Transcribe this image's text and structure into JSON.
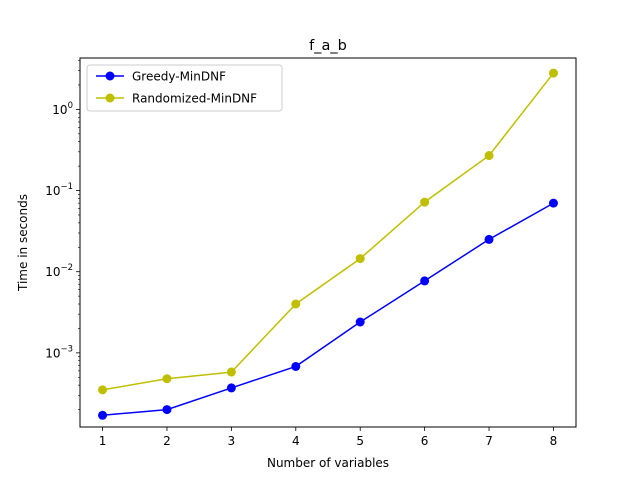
{
  "chart_data": {
    "type": "line",
    "title": "f_a_b",
    "xlabel": "Number of variables",
    "ylabel": "Time in seconds",
    "x": [
      1,
      2,
      3,
      4,
      5,
      6,
      7,
      8
    ],
    "xticks": [
      "1",
      "2",
      "3",
      "4",
      "5",
      "6",
      "7",
      "8"
    ],
    "yscale": "log",
    "ylim": [
      0.000122,
      4.3
    ],
    "yticks": [
      {
        "value": 0.001,
        "base": "10",
        "exp": "−3"
      },
      {
        "value": 0.01,
        "base": "10",
        "exp": "−2"
      },
      {
        "value": 0.1,
        "base": "10",
        "exp": "−1"
      },
      {
        "value": 1,
        "base": "10",
        "exp": "0"
      }
    ],
    "grid": false,
    "legend_position": "upper-left",
    "series": [
      {
        "name": "Greedy-MinDNF",
        "color": "#0000ff",
        "marker": "circle",
        "values": [
          0.00017,
          0.0002,
          0.00037,
          0.00068,
          0.0024,
          0.0077,
          0.025,
          0.07
        ]
      },
      {
        "name": "Randomized-MinDNF",
        "color": "#bfbf00",
        "marker": "circle",
        "values": [
          0.00035,
          0.00048,
          0.00058,
          0.004,
          0.0145,
          0.072,
          0.27,
          2.8
        ]
      }
    ]
  }
}
